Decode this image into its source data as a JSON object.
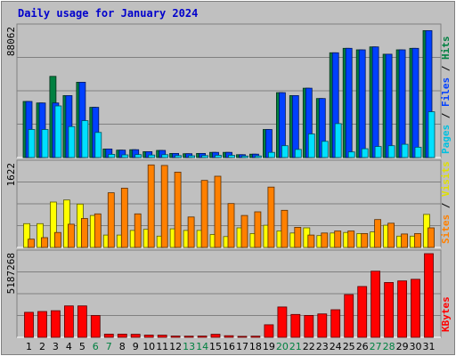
{
  "title": "Daily usage for January 2024",
  "colors": {
    "background": "#c0c0c0",
    "panel": "#c0c0c0",
    "grid": "#808080",
    "hits": "#008040",
    "files": "#0040ff",
    "pages": "#00e0ff",
    "visits": "#ffff00",
    "sites": "#ff8000",
    "kbytes": "#ff0000",
    "weekday_label": "#000000",
    "weekend_label": "#008040"
  },
  "side_labels": {
    "top": [
      {
        "text": "Pages",
        "color": "#00c0e0"
      },
      {
        "text": " / ",
        "color": "#000000"
      },
      {
        "text": "Files",
        "color": "#0040ff"
      },
      {
        "text": " / ",
        "color": "#000000"
      },
      {
        "text": "Hits",
        "color": "#008040"
      }
    ],
    "mid": [
      {
        "text": "Sites",
        "color": "#ff8000"
      },
      {
        "text": " / ",
        "color": "#000000"
      },
      {
        "text": "Visits",
        "color": "#e0e000"
      }
    ],
    "bot": [
      {
        "text": "KBytes",
        "color": "#ff0000"
      }
    ]
  },
  "chart_data": {
    "type": "bar",
    "title": "Daily usage for January 2024",
    "categories": [
      "1",
      "2",
      "3",
      "4",
      "5",
      "6",
      "7",
      "8",
      "9",
      "10",
      "11",
      "12",
      "13",
      "14",
      "15",
      "16",
      "17",
      "18",
      "19",
      "20",
      "21",
      "22",
      "23",
      "24",
      "25",
      "26",
      "27",
      "28",
      "29",
      "30",
      "31"
    ],
    "weekend_days": [
      "6",
      "7",
      "13",
      "14",
      "20",
      "21",
      "27",
      "28"
    ],
    "panels": [
      {
        "name": "hits-files-pages",
        "ymax_label": "88062",
        "ylim": [
          0,
          88062
        ],
        "series": [
          {
            "name": "Hits",
            "color": "#008040",
            "values": [
              38000,
              37000,
              55000,
              42000,
              51000,
              34000,
              5800,
              5000,
              5300,
              4000,
              4800,
              2800,
              2600,
              2800,
              3500,
              3500,
              1900,
              2300,
              19000,
              44000,
              42000,
              47000,
              40000,
              71000,
              74000,
              73000,
              75000,
              70000,
              73000,
              74000,
              86000
            ]
          },
          {
            "name": "Files",
            "color": "#0040ff",
            "values": [
              38000,
              37000,
              37000,
              42000,
              51000,
              34000,
              5800,
              5000,
              5300,
              4000,
              4800,
              2800,
              2600,
              2800,
              3500,
              3500,
              1900,
              2300,
              19000,
              44000,
              42000,
              47000,
              40000,
              71000,
              74000,
              73000,
              75000,
              70000,
              73000,
              74000,
              86000
            ]
          },
          {
            "name": "Pages",
            "color": "#00e0ff",
            "values": [
              19000,
              19000,
              35000,
              21000,
              25000,
              17000,
              2200,
              1800,
              2000,
              1700,
              1900,
              1300,
              1200,
              1300,
              1500,
              1500,
              1000,
              1100,
              3500,
              8000,
              5500,
              16000,
              11000,
              23000,
              3800,
              6000,
              7500,
              8000,
              9000,
              7000,
              31000
            ]
          }
        ]
      },
      {
        "name": "visits-sites",
        "ymax_label": "1622",
        "ylim": [
          0,
          1622
        ],
        "series": [
          {
            "name": "Visits",
            "color": "#ffff00",
            "values": [
              460,
              460,
              880,
              920,
              840,
              620,
              240,
              240,
              330,
              350,
              220,
              360,
              330,
              330,
              250,
              210,
              380,
              270,
              430,
              320,
              280,
              380,
              230,
              280,
              290,
              270,
              300,
              430,
              220,
              220,
              640
            ]
          },
          {
            "name": "Sites",
            "color": "#ff8000",
            "values": [
              160,
              190,
              290,
              450,
              560,
              650,
              1060,
              1150,
              650,
              1600,
              1590,
              1460,
              590,
              1300,
              1380,
              850,
              620,
              690,
              1170,
              720,
              390,
              240,
              280,
              320,
              320,
              270,
              540,
              470,
              260,
              270,
              380
            ]
          }
        ]
      },
      {
        "name": "kbytes",
        "ymax_label": "5187268",
        "ylim": [
          0,
          5187268
        ],
        "series": [
          {
            "name": "KBytes",
            "color": "#ff0000",
            "values": [
              1550000,
              1600000,
              1650000,
              1950000,
              1950000,
              1350000,
              200000,
              200000,
              190000,
              140000,
              130000,
              80000,
              70000,
              80000,
              190000,
              100000,
              60000,
              70000,
              780000,
              1880000,
              1420000,
              1360000,
              1450000,
              1710000,
              2650000,
              3150000,
              4100000,
              3400000,
              3500000,
              3600000,
              5187268
            ]
          }
        ]
      }
    ]
  }
}
